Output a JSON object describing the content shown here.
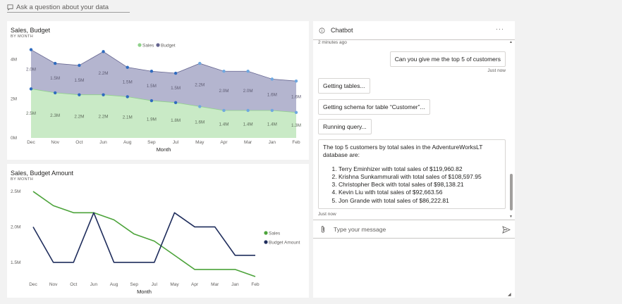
{
  "qa": {
    "placeholder": "Ask a question about your data",
    "icon": "chat-bubble-icon"
  },
  "chart1": {
    "title": "Sales, Budget",
    "subtitle": "BY MONTH",
    "legend": [
      {
        "label": "Sales",
        "color": "#8fd18a"
      },
      {
        "label": "Budget",
        "color": "#64648f"
      }
    ],
    "xlabel": "Month"
  },
  "chart2": {
    "title": "Sales, Budget Amount",
    "subtitle": "BY MONTH",
    "legend": [
      {
        "label": "Sales",
        "color": "#4ca33a"
      },
      {
        "label": "Budget Amount",
        "color": "#1f2d5c"
      }
    ],
    "xlabel": "Month"
  },
  "chart_data": [
    {
      "type": "area",
      "title": "Sales, Budget",
      "subtitle": "BY MONTH",
      "xlabel": "Month",
      "ylabel": "",
      "categories": [
        "Dec",
        "Nov",
        "Oct",
        "Jun",
        "Aug",
        "Sep",
        "Jul",
        "May",
        "Apr",
        "Mar",
        "Jan",
        "Feb"
      ],
      "yticks": [
        "0M",
        "2M",
        "4M"
      ],
      "ylim": [
        0,
        4.7
      ],
      "stacked": true,
      "legend_position": "top-center",
      "series": [
        {
          "name": "Sales",
          "values": [
            2.5,
            2.3,
            2.2,
            2.2,
            2.1,
            1.9,
            1.8,
            1.6,
            1.4,
            1.4,
            1.4,
            1.3
          ],
          "labels": [
            "2.5M",
            "2.3M",
            "2.2M",
            "2.2M",
            "2.1M",
            "1.9M",
            "1.8M",
            "1.6M",
            "1.4M",
            "1.4M",
            "1.4M",
            "1.3M"
          ],
          "color": "#8fd18a"
        },
        {
          "name": "Budget",
          "values": [
            2.0,
            1.5,
            1.5,
            2.2,
            1.5,
            1.5,
            1.5,
            2.2,
            2.0,
            2.0,
            1.6,
            1.6
          ],
          "labels": [
            "2.0M",
            "1.5M",
            "1.5M",
            "2.2M",
            "1.5M",
            "1.5M",
            "1.5M",
            "2.2M",
            "2.0M",
            "2.0M",
            "1.6M",
            "1.6M"
          ],
          "color": "#64648f"
        }
      ]
    },
    {
      "type": "line",
      "title": "Sales, Budget Amount",
      "subtitle": "BY MONTH",
      "xlabel": "Month",
      "ylabel": "",
      "categories": [
        "Dec",
        "Nov",
        "Oct",
        "Jun",
        "Aug",
        "Sep",
        "Jul",
        "May",
        "Apr",
        "Mar",
        "Jan",
        "Feb"
      ],
      "yticks": [
        "1.5M",
        "2.0M",
        "2.5M"
      ],
      "ylim": [
        1.3,
        2.6
      ],
      "legend_position": "right",
      "series": [
        {
          "name": "Sales",
          "values": [
            2.5,
            2.3,
            2.2,
            2.2,
            2.1,
            1.9,
            1.8,
            1.6,
            1.4,
            1.4,
            1.4,
            1.3
          ],
          "color": "#4ca33a"
        },
        {
          "name": "Budget Amount",
          "values": [
            2.0,
            1.5,
            1.5,
            2.2,
            1.5,
            1.5,
            1.5,
            2.2,
            2.0,
            2.0,
            1.6,
            1.6
          ],
          "color": "#1f2d5c"
        }
      ]
    }
  ],
  "chatbot": {
    "title": "Chatbot",
    "info_icon": "info-icon",
    "more_icon": "more-options-icon",
    "more_label": "···",
    "messages": [
      {
        "timestamp_before": "2 minutes ago"
      },
      {
        "role": "user",
        "text": "Can you give me the top 5 of customers",
        "timestamp": "Just now"
      },
      {
        "role": "bot",
        "text": "Getting tables..."
      },
      {
        "role": "bot",
        "text": "Getting schema for table “Customer”..."
      },
      {
        "role": "bot",
        "text": "Running query..."
      },
      {
        "role": "bot",
        "intro": "The top 5 customers by total sales in the AdventureWorksLT database are:",
        "items": [
          "Terry Eminhizer with total sales of $119,960.82",
          "Krishna Sunkammurali with total sales of $108,597.95",
          "Christopher Beck with total sales of $98,138.21",
          "Kevin Liu with total sales of $92,663.56",
          "Jon Grande with total sales of $86,222.81"
        ],
        "timestamp": "Just now"
      }
    ],
    "input_placeholder": "Type your message",
    "attach_icon": "paperclip-icon",
    "send_icon": "send-icon"
  }
}
